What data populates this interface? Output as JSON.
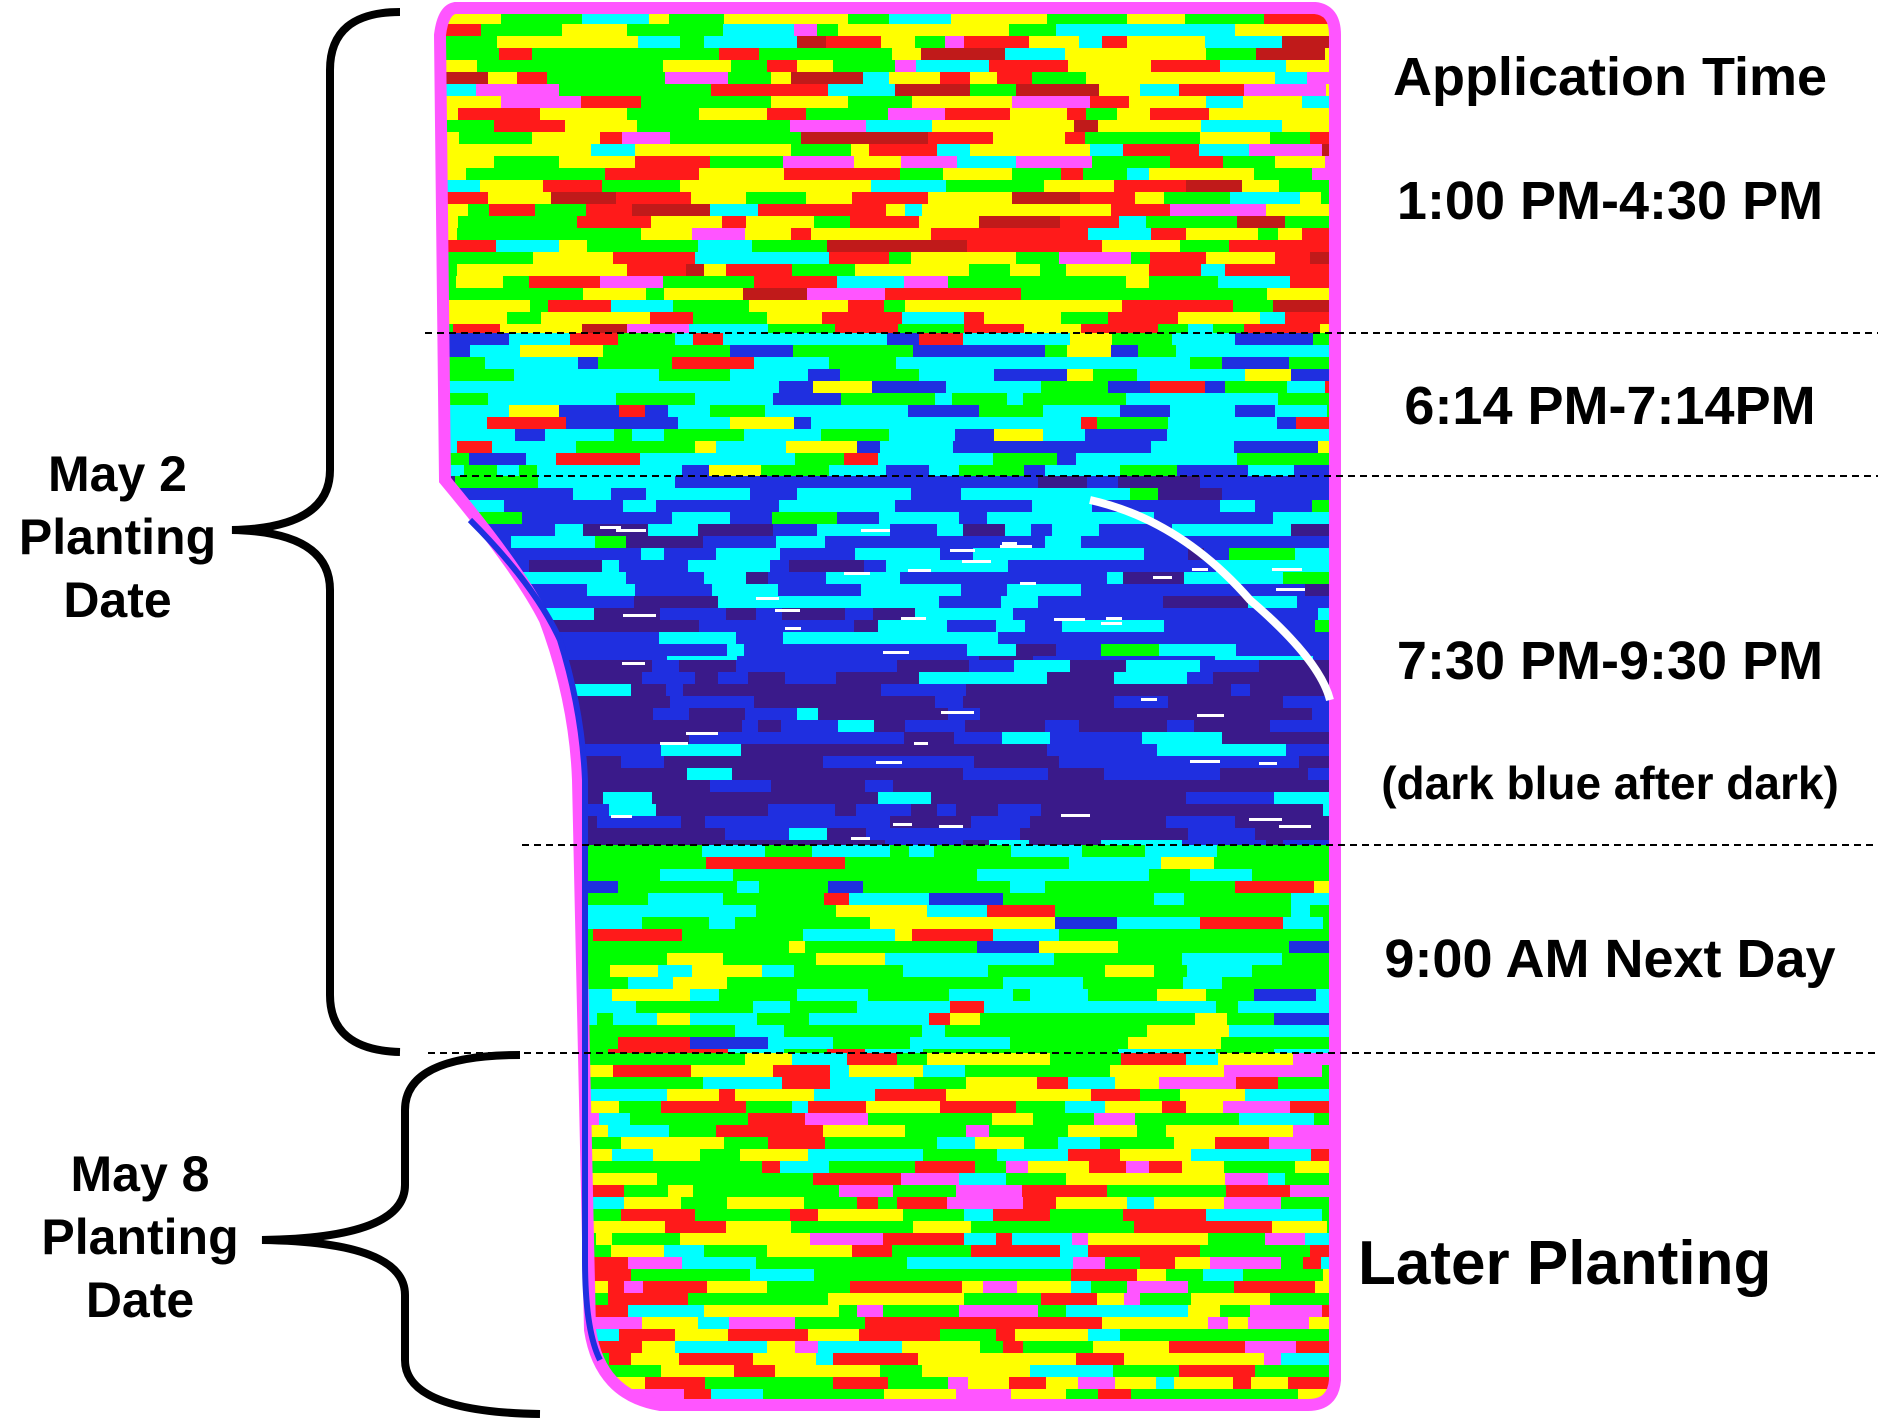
{
  "header": {
    "title": "Application Time"
  },
  "time_zones": [
    {
      "label": "1:00 PM-4:30 PM"
    },
    {
      "label": "6:14 PM-7:14PM"
    },
    {
      "label": "7:30 PM-9:30 PM"
    },
    {
      "label": "9:00 AM Next Day"
    }
  ],
  "note": "(dark blue after dark)",
  "planting_groups": [
    {
      "line1": "May 2",
      "line2": "Planting",
      "line3": "Date"
    },
    {
      "line1": "May 8",
      "line2": "Planting",
      "line3": "Date"
    }
  ],
  "later_label": "Later Planting",
  "colors": {
    "yellow": "#ffff00",
    "green": "#00ff00",
    "cyan": "#00ffff",
    "blue": "#1f2fe0",
    "dark_blue": "#3a1a8a",
    "red": "#ff1a1a",
    "magenta": "#ff55ff",
    "dark_red": "#c01a1a"
  }
}
